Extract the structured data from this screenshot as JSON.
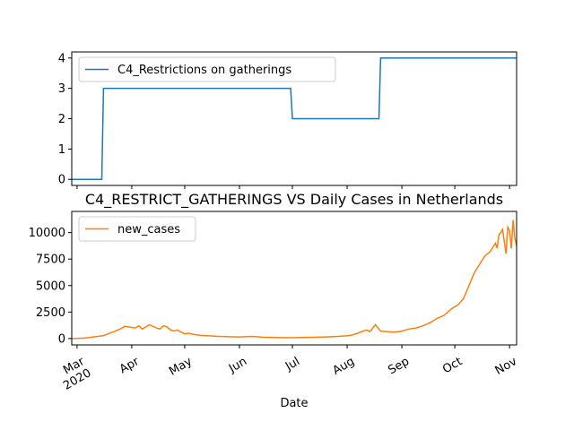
{
  "figure": {
    "title": "C4_RESTRICT_GATHERINGS VS Daily Cases in Netherlands",
    "xlabel": "Date",
    "x_tick_labels": [
      "Mar\n2020",
      "Apr",
      "May",
      "Jun",
      "Jul",
      "Aug",
      "Sep",
      "Oct",
      "Nov"
    ]
  },
  "chart_data": [
    {
      "type": "line",
      "panel": "top",
      "series": [
        {
          "name": "C4_Restrictions on gatherings",
          "color": "#1f77b4",
          "x": [
            "2020-02-27",
            "2020-03-15",
            "2020-03-16",
            "2020-06-30",
            "2020-07-01",
            "2020-08-19",
            "2020-08-20",
            "2020-11-05"
          ],
          "values": [
            0,
            0,
            3,
            3,
            2,
            2,
            4,
            4
          ]
        }
      ],
      "ylim": [
        -0.2,
        4.2
      ],
      "y_ticks": [
        0,
        1,
        2,
        3,
        4
      ],
      "xlim": [
        "2020-02-27",
        "2020-11-05"
      ],
      "legend": "top-left",
      "grid": false
    },
    {
      "type": "line",
      "panel": "bottom",
      "series": [
        {
          "name": "new_cases",
          "color": "#ff7f0e",
          "x": [
            "2020-02-27",
            "2020-03-01",
            "2020-03-05",
            "2020-03-08",
            "2020-03-10",
            "2020-03-13",
            "2020-03-16",
            "2020-03-18",
            "2020-03-20",
            "2020-03-22",
            "2020-03-24",
            "2020-03-26",
            "2020-03-28",
            "2020-03-30",
            "2020-04-01",
            "2020-04-03",
            "2020-04-05",
            "2020-04-07",
            "2020-04-09",
            "2020-04-11",
            "2020-04-13",
            "2020-04-15",
            "2020-04-17",
            "2020-04-19",
            "2020-04-21",
            "2020-04-23",
            "2020-04-25",
            "2020-04-27",
            "2020-04-29",
            "2020-05-01",
            "2020-05-03",
            "2020-05-06",
            "2020-05-10",
            "2020-05-15",
            "2020-05-20",
            "2020-05-25",
            "2020-06-01",
            "2020-06-08",
            "2020-06-15",
            "2020-06-22",
            "2020-06-29",
            "2020-07-06",
            "2020-07-13",
            "2020-07-20",
            "2020-07-27",
            "2020-08-03",
            "2020-08-07",
            "2020-08-10",
            "2020-08-12",
            "2020-08-14",
            "2020-08-17",
            "2020-08-20",
            "2020-08-24",
            "2020-08-28",
            "2020-09-01",
            "2020-09-05",
            "2020-09-09",
            "2020-09-13",
            "2020-09-17",
            "2020-09-21",
            "2020-09-25",
            "2020-09-29",
            "2020-10-03",
            "2020-10-06",
            "2020-10-09",
            "2020-10-12",
            "2020-10-15",
            "2020-10-18",
            "2020-10-21",
            "2020-10-24",
            "2020-10-25",
            "2020-10-26",
            "2020-10-27",
            "2020-10-28",
            "2020-10-29",
            "2020-10-30",
            "2020-10-31",
            "2020-11-01",
            "2020-11-02",
            "2020-11-03",
            "2020-11-04",
            "2020-11-05"
          ],
          "values": [
            0,
            5,
            40,
            100,
            150,
            200,
            280,
            400,
            550,
            650,
            800,
            950,
            1150,
            1100,
            1050,
            1000,
            1200,
            900,
            1100,
            1300,
            1150,
            1000,
            900,
            1200,
            1100,
            800,
            700,
            800,
            600,
            450,
            500,
            400,
            300,
            250,
            200,
            180,
            150,
            200,
            120,
            100,
            80,
            100,
            120,
            150,
            200,
            300,
            500,
            700,
            800,
            650,
            1300,
            700,
            650,
            600,
            700,
            900,
            1000,
            1200,
            1500,
            1900,
            2200,
            2800,
            3200,
            3800,
            5000,
            6200,
            7000,
            7800,
            8200,
            9000,
            8500,
            9800,
            10000,
            10300,
            9200,
            8000,
            10500,
            10200,
            8500,
            11200,
            9500,
            8700
          ]
        }
      ],
      "ylim": [
        -600,
        12000
      ],
      "y_ticks": [
        0,
        2500,
        5000,
        7500,
        10000
      ],
      "xlim": [
        "2020-02-27",
        "2020-11-05"
      ],
      "legend": "top-left",
      "grid": false
    }
  ]
}
